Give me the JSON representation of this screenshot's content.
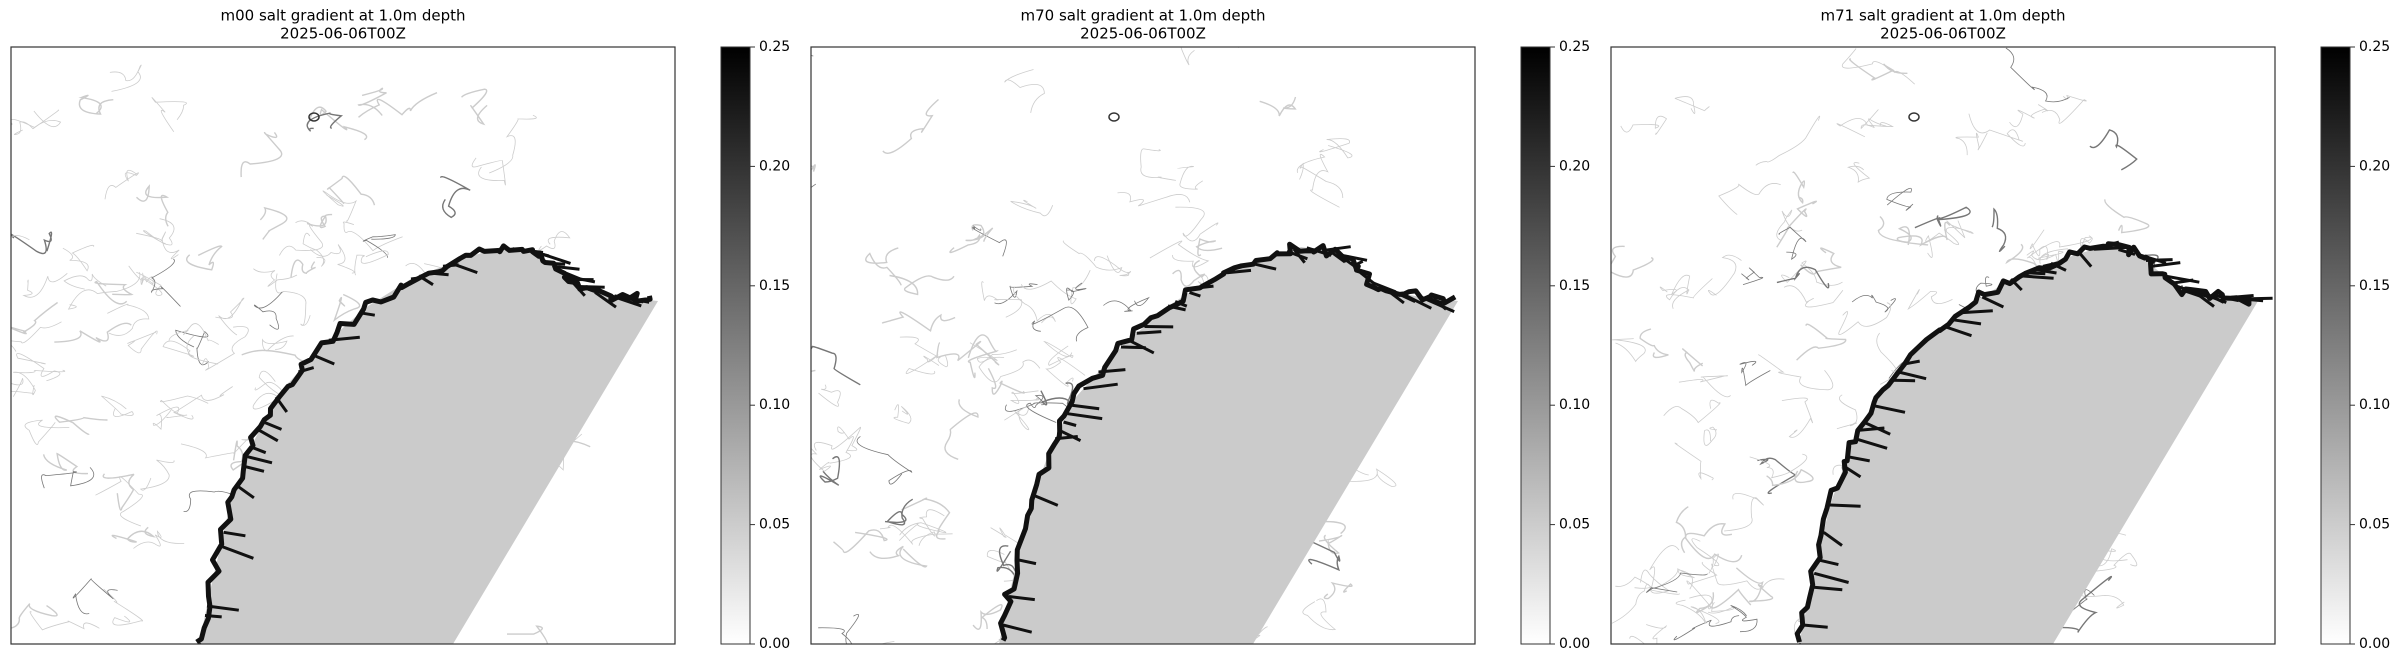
{
  "panels": [
    {
      "title": "m00 salt gradient at 1.0m depth",
      "subtitle": "2025-06-06T00Z",
      "colorbar": {
        "colormap": "gray_r",
        "lim": [
          0,
          0.25
        ],
        "ticks": [
          {
            "value": 0,
            "label": "0.00"
          },
          {
            "value": 0.05,
            "label": "0.05"
          },
          {
            "value": 0.1,
            "label": "0.10"
          },
          {
            "value": 0.15,
            "label": "0.15"
          },
          {
            "value": 0.2,
            "label": "0.20"
          },
          {
            "value": 0.25,
            "label": "0.25"
          }
        ]
      }
    },
    {
      "title": "m70 salt gradient at 1.0m depth",
      "subtitle": "2025-06-06T00Z",
      "colorbar": {
        "colormap": "gray_r",
        "lim": [
          0,
          0.25
        ],
        "ticks": [
          {
            "value": 0,
            "label": "0.00"
          },
          {
            "value": 0.05,
            "label": "0.05"
          },
          {
            "value": 0.1,
            "label": "0.10"
          },
          {
            "value": 0.15,
            "label": "0.15"
          },
          {
            "value": 0.2,
            "label": "0.20"
          },
          {
            "value": 0.25,
            "label": "0.25"
          }
        ]
      }
    },
    {
      "title": "m71 salt gradient at 1.0m depth",
      "subtitle": "2025-06-06T00Z",
      "colorbar": {
        "colormap": "gray_r",
        "lim": [
          0,
          0.25
        ],
        "ticks": [
          {
            "value": 0,
            "label": "0.00"
          },
          {
            "value": 0.05,
            "label": "0.05"
          },
          {
            "value": 0.1,
            "label": "0.10"
          },
          {
            "value": 0.15,
            "label": "0.15"
          },
          {
            "value": 0.2,
            "label": "0.20"
          },
          {
            "value": 0.25,
            "label": "0.25"
          }
        ]
      }
    }
  ]
}
